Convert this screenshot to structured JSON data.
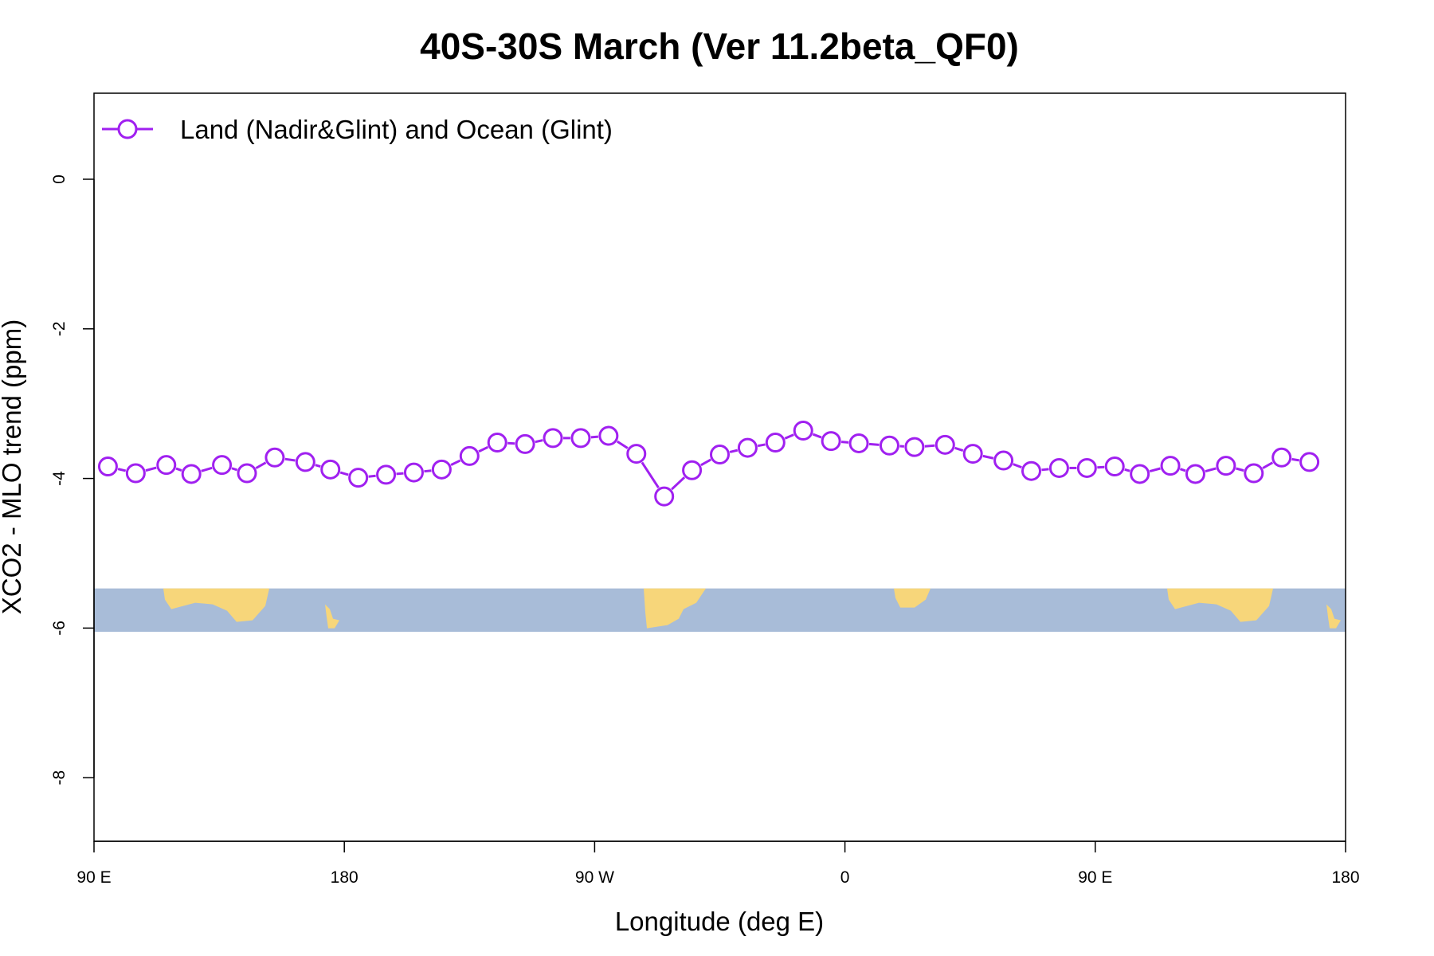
{
  "colors": {
    "series": "#a020f0",
    "ocean_band": "#a8bcd8",
    "land": "#f7d67a",
    "axis": "#000000",
    "background": "#ffffff"
  },
  "chart_data": {
    "type": "line",
    "title": "40S-30S March (Ver 11.2beta_QF0)",
    "xlabel": "Longitude (deg E)",
    "ylabel": "XCO2 - MLO trend (ppm)",
    "x_ticks": [
      {
        "value": 90,
        "label": "90 E"
      },
      {
        "value": 180,
        "label": "180"
      },
      {
        "value": 270,
        "label": "90 W"
      },
      {
        "value": 360,
        "label": "0"
      },
      {
        "value": 450,
        "label": "90 E"
      },
      {
        "value": 540,
        "label": "180"
      }
    ],
    "y_ticks": [
      {
        "value": 0,
        "label": "0"
      },
      {
        "value": -2,
        "label": "-2"
      },
      {
        "value": -4,
        "label": "-4"
      },
      {
        "value": -6,
        "label": "-6"
      },
      {
        "value": -8,
        "label": "-8"
      }
    ],
    "xlim": [
      90,
      540
    ],
    "ylim": [
      -8.85,
      1.15
    ],
    "grid": false,
    "legend_position": "top-left",
    "map_band": {
      "y_top": -5.47,
      "y_bottom": -6.05
    },
    "series": [
      {
        "name": "Land (Nadir&Glint) and Ocean (Glint)",
        "marker": "open-circle",
        "x": [
          95,
          105,
          116,
          125,
          136,
          145,
          155,
          166,
          175,
          185,
          195,
          205,
          215,
          225,
          235,
          245,
          255,
          265,
          275,
          285,
          295,
          305,
          315,
          325,
          335,
          345,
          355,
          365,
          376,
          385,
          396,
          406,
          417,
          427,
          437,
          447,
          457,
          466,
          477,
          486,
          497,
          507,
          517,
          527
        ],
        "y": [
          -3.84,
          -3.93,
          -3.82,
          -3.94,
          -3.82,
          -3.93,
          -3.72,
          -3.78,
          -3.88,
          -3.99,
          -3.95,
          -3.92,
          -3.88,
          -3.7,
          -3.52,
          -3.54,
          -3.46,
          -3.46,
          -3.43,
          -3.67,
          -4.24,
          -3.89,
          -3.68,
          -3.59,
          -3.52,
          -3.36,
          -3.5,
          -3.53,
          -3.56,
          -3.58,
          -3.55,
          -3.67,
          -3.76,
          -3.9,
          -3.86,
          -3.86,
          -3.84,
          -3.94,
          -3.83,
          -3.94,
          -3.83,
          -3.93,
          -3.72,
          -3.78
        ]
      }
    ]
  }
}
